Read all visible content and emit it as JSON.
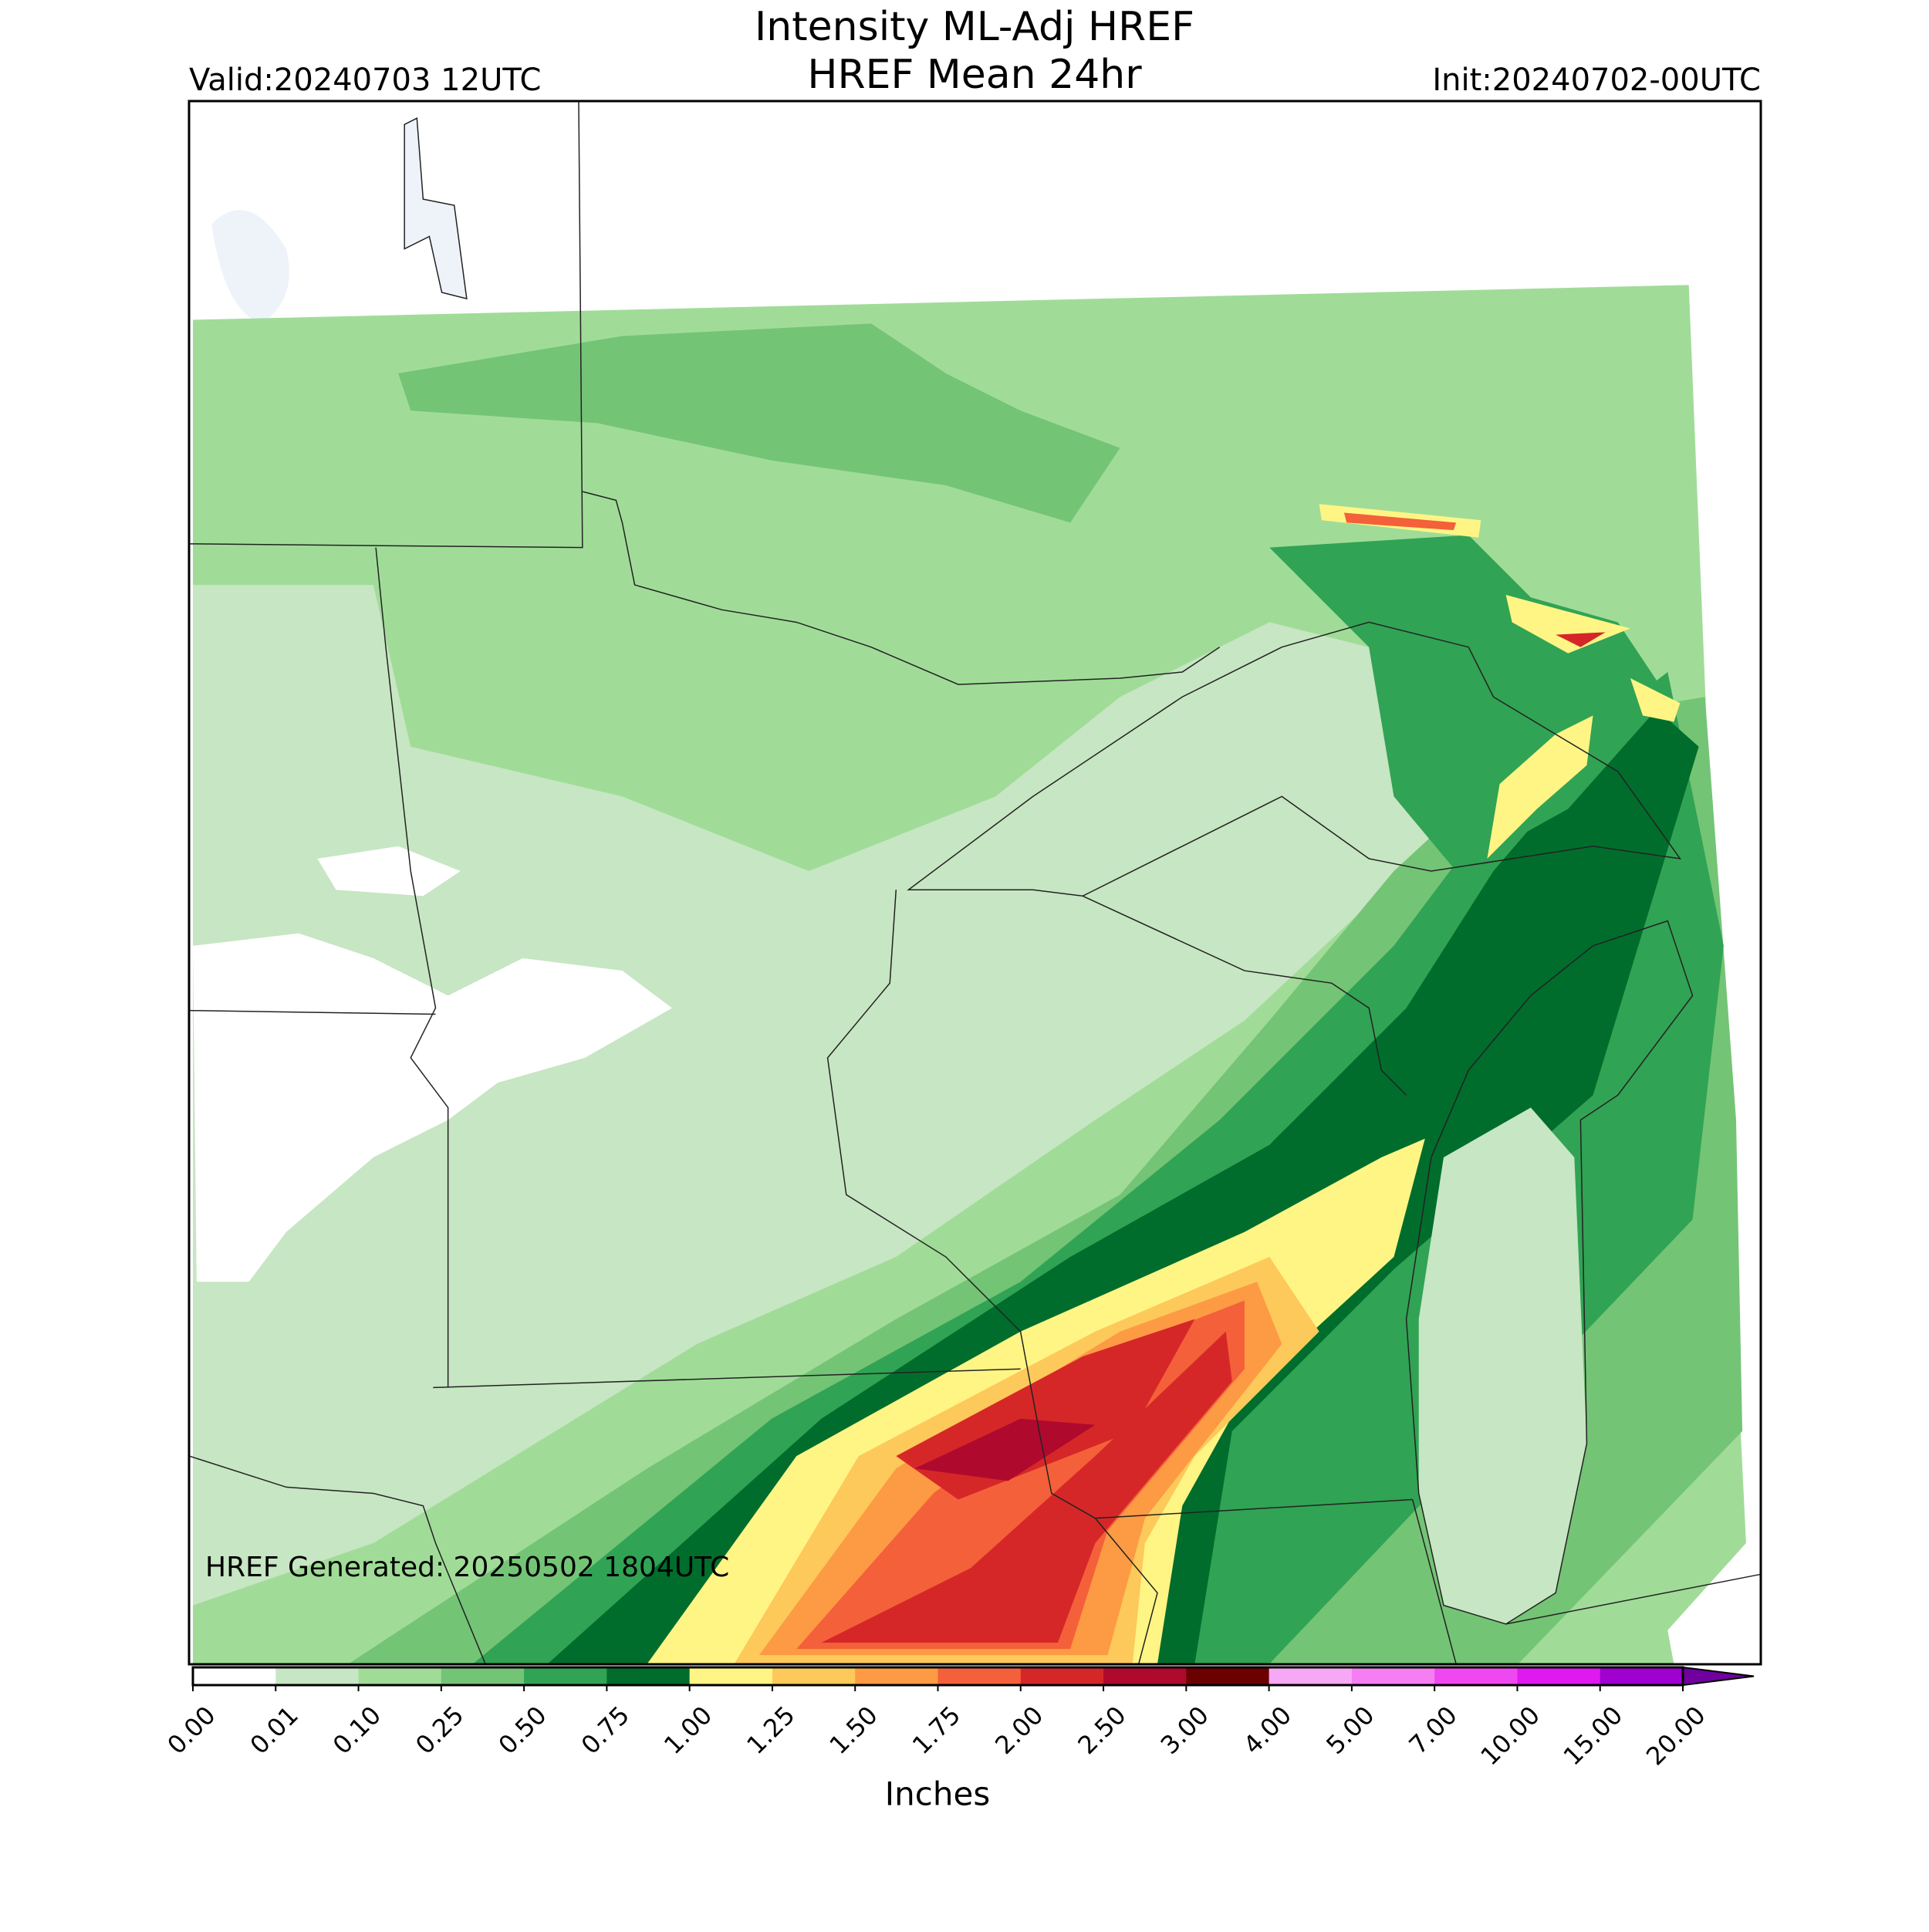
{
  "header": {
    "title": "Intensity ML-Adj HREF",
    "subtitle": "HREF Mean 24hr",
    "valid": "Valid:20240703 12UTC",
    "init": "Init:20240702-00UTC"
  },
  "map": {
    "footnote": "HREF Generated: 20250502 1804UTC"
  },
  "colorbar": {
    "label": "Inches",
    "ticks": [
      {
        "value": 0,
        "label": "0.00"
      },
      {
        "value": 0.01,
        "label": "0.01"
      },
      {
        "value": 0.1,
        "label": "0.10"
      },
      {
        "value": 0.25,
        "label": "0.25"
      },
      {
        "value": 0.5,
        "label": "0.50"
      },
      {
        "value": 0.75,
        "label": "0.75"
      },
      {
        "value": 1,
        "label": "1.00"
      },
      {
        "value": 1.25,
        "label": "1.25"
      },
      {
        "value": 1.5,
        "label": "1.50"
      },
      {
        "value": 1.75,
        "label": "1.75"
      },
      {
        "value": 2,
        "label": "2.00"
      },
      {
        "value": 2.5,
        "label": "2.50"
      },
      {
        "value": 3,
        "label": "3.00"
      },
      {
        "value": 4,
        "label": "4.00"
      },
      {
        "value": 5,
        "label": "5.00"
      },
      {
        "value": 7,
        "label": "7.00"
      },
      {
        "value": 10,
        "label": "10.00"
      },
      {
        "value": 15,
        "label": "15.00"
      },
      {
        "value": 20,
        "label": "20.00"
      }
    ],
    "colors": [
      "#ffffff",
      "#c7e6c3",
      "#a0dc98",
      "#74c476",
      "#31a354",
      "#006d2c",
      "#fff585",
      "#fdc95a",
      "#fd9a44",
      "#f4603a",
      "#d62728",
      "#b0092e",
      "#6b0000",
      "#f7a8f5",
      "#f57ef3",
      "#f048f0",
      "#e019f0",
      "#a000d0"
    ],
    "extend_color": "#7000a0"
  }
}
